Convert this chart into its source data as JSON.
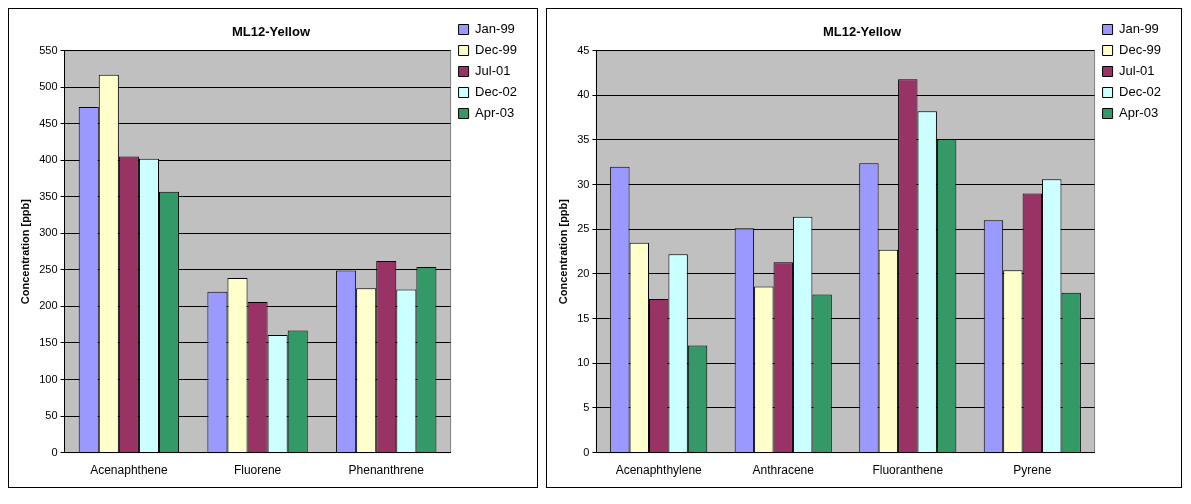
{
  "chart_data": [
    {
      "type": "bar",
      "title": "ML12-Yellow",
      "ylabel": "Concentration [ppb]",
      "categories": [
        "Acenaphthene",
        "Fluorene",
        "Phenanthrene"
      ],
      "series": [
        {
          "name": "Jan-99",
          "color": "#9999ff",
          "values": [
            473,
            220,
            249
          ]
        },
        {
          "name": "Dec-99",
          "color": "#ffffcc",
          "values": [
            517,
            239,
            225
          ]
        },
        {
          "name": "Jul-01",
          "color": "#993366",
          "values": [
            405,
            206,
            262
          ]
        },
        {
          "name": "Dec-02",
          "color": "#ccffff",
          "values": [
            402,
            161,
            223
          ]
        },
        {
          "name": "Apr-03",
          "color": "#339966",
          "values": [
            357,
            167,
            254
          ]
        }
      ],
      "ylim": [
        0,
        550
      ],
      "yticks": [
        0,
        50,
        100,
        150,
        200,
        250,
        300,
        350,
        400,
        450,
        500,
        550
      ],
      "grid": "y",
      "legend": "top right"
    },
    {
      "type": "bar",
      "title": "ML12-Yellow",
      "ylabel": "Concentration [ppb]",
      "categories": [
        "Acenaphthylene",
        "Anthracene",
        "Fluoranthene",
        "Pyrene"
      ],
      "series": [
        {
          "name": "Jan-99",
          "color": "#9999ff",
          "values": [
            32,
            25.1,
            32.4,
            26
          ]
        },
        {
          "name": "Dec-99",
          "color": "#ffffcc",
          "values": [
            23.5,
            18.6,
            22.7,
            20.4
          ]
        },
        {
          "name": "Jul-01",
          "color": "#993366",
          "values": [
            17.2,
            21.3,
            41.8,
            29
          ]
        },
        {
          "name": "Dec-02",
          "color": "#ccffff",
          "values": [
            22.2,
            26.4,
            38.2,
            30.6
          ]
        },
        {
          "name": "Apr-03",
          "color": "#339966",
          "values": [
            12,
            17.7,
            35.1,
            17.9
          ]
        }
      ],
      "ylim": [
        0,
        45
      ],
      "yticks": [
        0,
        5,
        10,
        15,
        20,
        25,
        30,
        35,
        40,
        45
      ],
      "grid": "y",
      "legend": "top right"
    }
  ]
}
